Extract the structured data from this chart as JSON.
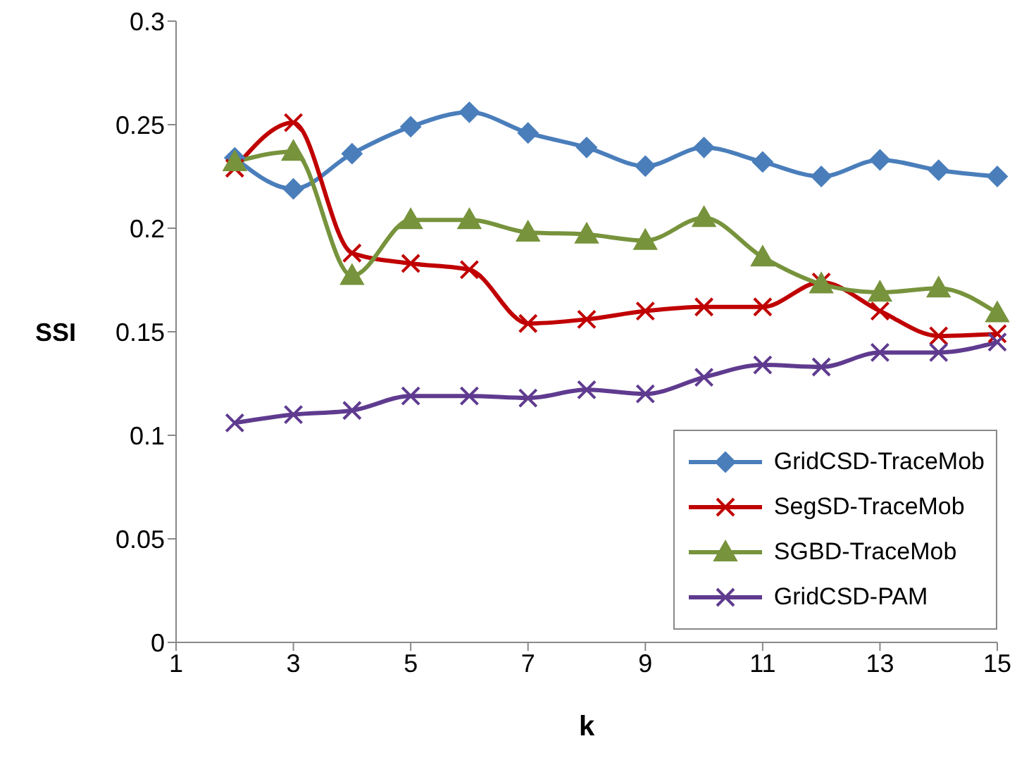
{
  "chart_data": {
    "type": "line",
    "xlabel": "k",
    "ylabel": "SSI",
    "x": [
      2,
      3,
      4,
      5,
      6,
      7,
      8,
      9,
      10,
      11,
      12,
      13,
      14,
      15
    ],
    "xlim": [
      1,
      15
    ],
    "xticks": [
      1,
      3,
      5,
      7,
      9,
      11,
      13,
      15
    ],
    "ylim": [
      0,
      0.3
    ],
    "yticks": [
      0,
      0.05,
      0.1,
      0.15,
      0.2,
      0.25,
      0.3
    ],
    "grid": false,
    "legend": "bottom right",
    "series": [
      {
        "name": "GridCSD-TraceMob",
        "color": "#4a7ebb",
        "marker": "diamond",
        "values": [
          0.234,
          0.219,
          0.236,
          0.249,
          0.256,
          0.246,
          0.239,
          0.23,
          0.239,
          0.232,
          0.225,
          0.233,
          0.228,
          0.225
        ]
      },
      {
        "name": "SegSD-TraceMob",
        "color": "#c00000",
        "marker": "cross",
        "values": [
          0.229,
          0.251,
          0.188,
          0.183,
          0.18,
          0.154,
          0.156,
          0.16,
          0.162,
          0.162,
          0.174,
          0.16,
          0.148,
          0.149
        ]
      },
      {
        "name": "SGBD-TraceMob",
        "color": "#77933c",
        "marker": "triangle",
        "values": [
          0.232,
          0.237,
          0.177,
          0.204,
          0.204,
          0.198,
          0.197,
          0.194,
          0.205,
          0.186,
          0.173,
          0.169,
          0.171,
          0.159
        ]
      },
      {
        "name": "GridCSD-PAM",
        "color": "#5f3b8f",
        "marker": "cross",
        "values": [
          0.106,
          0.11,
          0.112,
          0.119,
          0.119,
          0.118,
          0.122,
          0.12,
          0.128,
          0.134,
          0.133,
          0.14,
          0.14,
          0.145
        ]
      }
    ]
  }
}
